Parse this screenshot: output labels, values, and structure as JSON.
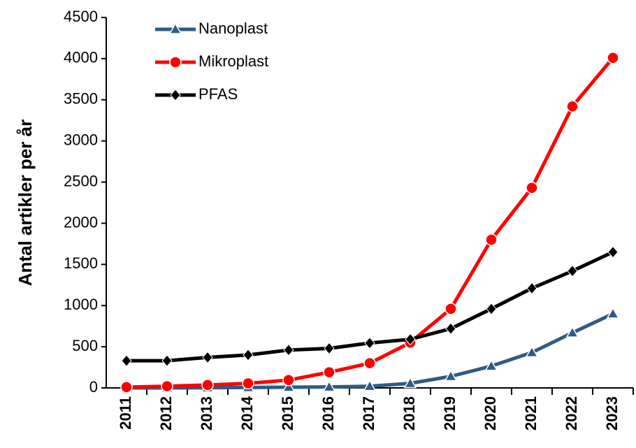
{
  "chart_data": {
    "type": "line",
    "ylabel": "Antal artikler per år",
    "categories": [
      "2011",
      "2012",
      "2013",
      "2014",
      "2015",
      "2016",
      "2017",
      "2018",
      "2019",
      "2020",
      "2021",
      "2022",
      "2023"
    ],
    "series": [
      {
        "name": "Nanoplast",
        "color": "#2f5b84",
        "marker": "triangle",
        "values": [
          0,
          0,
          2,
          5,
          8,
          12,
          20,
          55,
          140,
          265,
          430,
          670,
          900
        ]
      },
      {
        "name": "Mikroplast",
        "color": "#ff0000",
        "marker": "circle",
        "values": [
          10,
          20,
          35,
          55,
          95,
          190,
          300,
          550,
          960,
          1800,
          2430,
          3420,
          4010
        ]
      },
      {
        "name": "PFAS",
        "color": "#000000",
        "marker": "diamond",
        "values": [
          330,
          330,
          370,
          400,
          460,
          480,
          545,
          590,
          720,
          960,
          1210,
          1420,
          1650
        ]
      }
    ],
    "ylim": [
      0,
      4500
    ],
    "yticks": [
      0,
      500,
      1000,
      1500,
      2000,
      2500,
      3000,
      3500,
      4000,
      4500
    ],
    "grid": false,
    "legend": "upper left"
  }
}
